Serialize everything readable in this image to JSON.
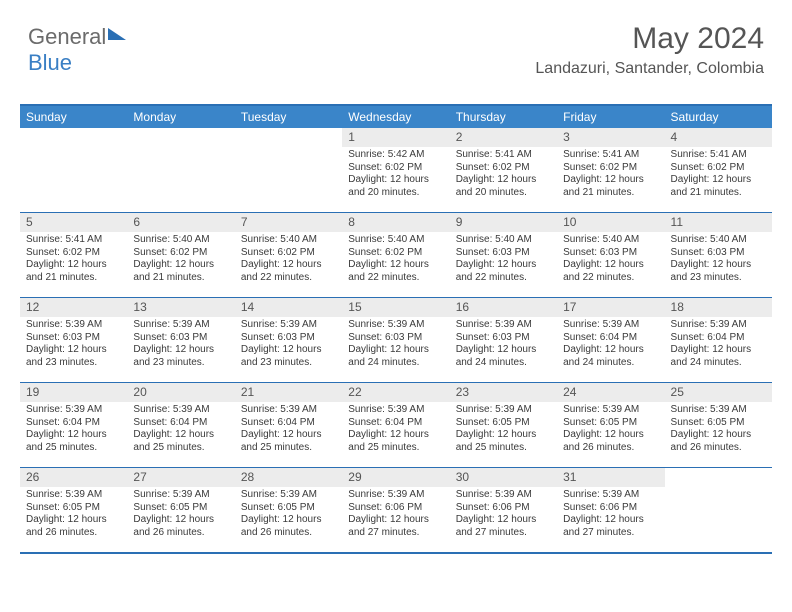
{
  "logo": {
    "text1": "General",
    "text2": "Blue"
  },
  "header": {
    "month": "May 2024",
    "location": "Landazuri, Santander, Colombia"
  },
  "colors": {
    "header_bar": "#3a85c9",
    "border": "#2a6fb4",
    "daynum_bg": "#ececec",
    "text": "#3a3a3a"
  },
  "weekdays": [
    "Sunday",
    "Monday",
    "Tuesday",
    "Wednesday",
    "Thursday",
    "Friday",
    "Saturday"
  ],
  "weeks": [
    [
      {
        "empty": true
      },
      {
        "empty": true
      },
      {
        "empty": true
      },
      {
        "n": "1",
        "sr": "5:42 AM",
        "ss": "6:02 PM",
        "dl": "12 hours and 20 minutes."
      },
      {
        "n": "2",
        "sr": "5:41 AM",
        "ss": "6:02 PM",
        "dl": "12 hours and 20 minutes."
      },
      {
        "n": "3",
        "sr": "5:41 AM",
        "ss": "6:02 PM",
        "dl": "12 hours and 21 minutes."
      },
      {
        "n": "4",
        "sr": "5:41 AM",
        "ss": "6:02 PM",
        "dl": "12 hours and 21 minutes."
      }
    ],
    [
      {
        "n": "5",
        "sr": "5:41 AM",
        "ss": "6:02 PM",
        "dl": "12 hours and 21 minutes."
      },
      {
        "n": "6",
        "sr": "5:40 AM",
        "ss": "6:02 PM",
        "dl": "12 hours and 21 minutes."
      },
      {
        "n": "7",
        "sr": "5:40 AM",
        "ss": "6:02 PM",
        "dl": "12 hours and 22 minutes."
      },
      {
        "n": "8",
        "sr": "5:40 AM",
        "ss": "6:02 PM",
        "dl": "12 hours and 22 minutes."
      },
      {
        "n": "9",
        "sr": "5:40 AM",
        "ss": "6:03 PM",
        "dl": "12 hours and 22 minutes."
      },
      {
        "n": "10",
        "sr": "5:40 AM",
        "ss": "6:03 PM",
        "dl": "12 hours and 22 minutes."
      },
      {
        "n": "11",
        "sr": "5:40 AM",
        "ss": "6:03 PM",
        "dl": "12 hours and 23 minutes."
      }
    ],
    [
      {
        "n": "12",
        "sr": "5:39 AM",
        "ss": "6:03 PM",
        "dl": "12 hours and 23 minutes."
      },
      {
        "n": "13",
        "sr": "5:39 AM",
        "ss": "6:03 PM",
        "dl": "12 hours and 23 minutes."
      },
      {
        "n": "14",
        "sr": "5:39 AM",
        "ss": "6:03 PM",
        "dl": "12 hours and 23 minutes."
      },
      {
        "n": "15",
        "sr": "5:39 AM",
        "ss": "6:03 PM",
        "dl": "12 hours and 24 minutes."
      },
      {
        "n": "16",
        "sr": "5:39 AM",
        "ss": "6:03 PM",
        "dl": "12 hours and 24 minutes."
      },
      {
        "n": "17",
        "sr": "5:39 AM",
        "ss": "6:04 PM",
        "dl": "12 hours and 24 minutes."
      },
      {
        "n": "18",
        "sr": "5:39 AM",
        "ss": "6:04 PM",
        "dl": "12 hours and 24 minutes."
      }
    ],
    [
      {
        "n": "19",
        "sr": "5:39 AM",
        "ss": "6:04 PM",
        "dl": "12 hours and 25 minutes."
      },
      {
        "n": "20",
        "sr": "5:39 AM",
        "ss": "6:04 PM",
        "dl": "12 hours and 25 minutes."
      },
      {
        "n": "21",
        "sr": "5:39 AM",
        "ss": "6:04 PM",
        "dl": "12 hours and 25 minutes."
      },
      {
        "n": "22",
        "sr": "5:39 AM",
        "ss": "6:04 PM",
        "dl": "12 hours and 25 minutes."
      },
      {
        "n": "23",
        "sr": "5:39 AM",
        "ss": "6:05 PM",
        "dl": "12 hours and 25 minutes."
      },
      {
        "n": "24",
        "sr": "5:39 AM",
        "ss": "6:05 PM",
        "dl": "12 hours and 26 minutes."
      },
      {
        "n": "25",
        "sr": "5:39 AM",
        "ss": "6:05 PM",
        "dl": "12 hours and 26 minutes."
      }
    ],
    [
      {
        "n": "26",
        "sr": "5:39 AM",
        "ss": "6:05 PM",
        "dl": "12 hours and 26 minutes."
      },
      {
        "n": "27",
        "sr": "5:39 AM",
        "ss": "6:05 PM",
        "dl": "12 hours and 26 minutes."
      },
      {
        "n": "28",
        "sr": "5:39 AM",
        "ss": "6:05 PM",
        "dl": "12 hours and 26 minutes."
      },
      {
        "n": "29",
        "sr": "5:39 AM",
        "ss": "6:06 PM",
        "dl": "12 hours and 27 minutes."
      },
      {
        "n": "30",
        "sr": "5:39 AM",
        "ss": "6:06 PM",
        "dl": "12 hours and 27 minutes."
      },
      {
        "n": "31",
        "sr": "5:39 AM",
        "ss": "6:06 PM",
        "dl": "12 hours and 27 minutes."
      },
      {
        "empty": true
      }
    ]
  ],
  "labels": {
    "sunrise": "Sunrise:",
    "sunset": "Sunset:",
    "daylight": "Daylight:"
  }
}
